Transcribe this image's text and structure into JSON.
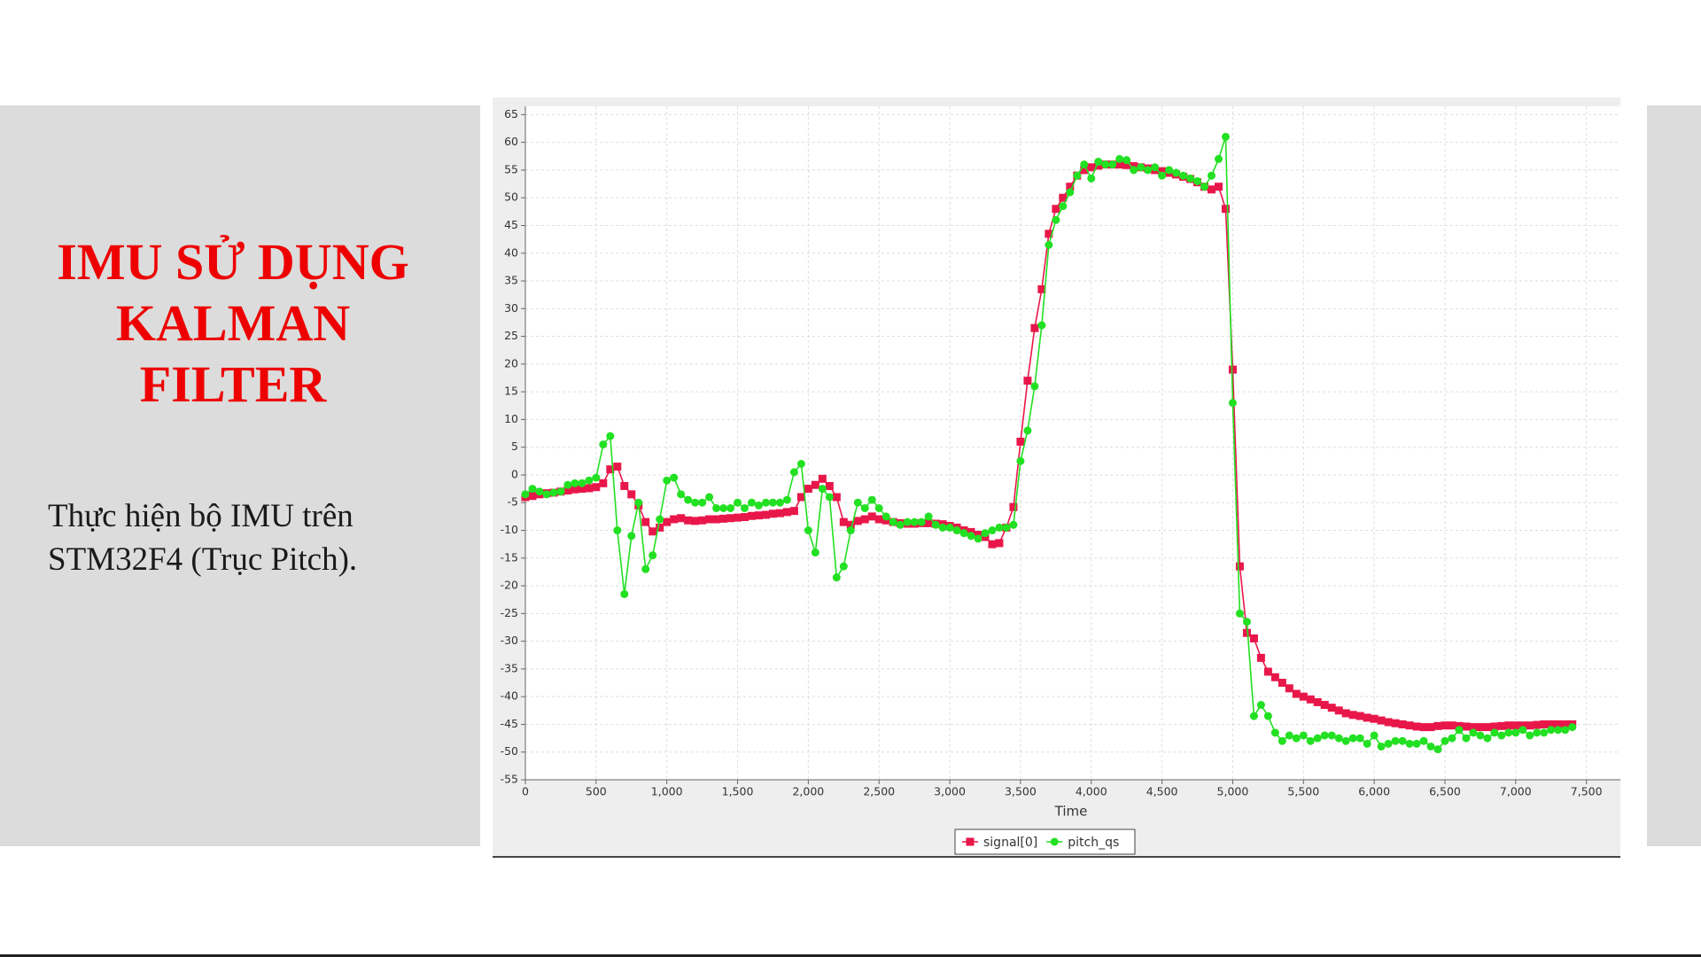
{
  "slide": {
    "title_lines": [
      "IMU SỬ DỤNG",
      "KALMAN",
      "FILTER"
    ],
    "body_lines": [
      "Thực hiện bộ IMU trên",
      "STM32F4 (Trục Pitch)."
    ]
  },
  "chart_data": {
    "type": "line",
    "x_label": "Time",
    "legend": "bottom",
    "grid": true,
    "xlim": [
      0,
      7740
    ],
    "ylim": [
      -55,
      66.5
    ],
    "xticks": [
      0,
      500,
      {
        "value": 1000,
        "label": "1,000"
      },
      {
        "value": 1500,
        "label": "1,500"
      },
      {
        "value": 2000,
        "label": "2,000"
      },
      {
        "value": 2500,
        "label": "2,500"
      },
      {
        "value": 3000,
        "label": "3,000"
      },
      {
        "value": 3500,
        "label": "3,500"
      },
      {
        "value": 4000,
        "label": "4,000"
      },
      {
        "value": 4500,
        "label": "4,500"
      },
      {
        "value": 5000,
        "label": "5,000"
      },
      {
        "value": 5500,
        "label": "5,500"
      },
      {
        "value": 6000,
        "label": "6,000"
      },
      {
        "value": 6500,
        "label": "6,500"
      },
      {
        "value": 7000,
        "label": "7,000"
      },
      {
        "value": 7500,
        "label": "7,500"
      }
    ],
    "yticks": [
      -55,
      -50,
      -45,
      -40,
      -35,
      -30,
      -25,
      -20,
      -15,
      -10,
      -5,
      0,
      5,
      10,
      15,
      20,
      25,
      30,
      35,
      40,
      45,
      50,
      55,
      60,
      65
    ],
    "x": [
      0,
      50,
      100,
      150,
      200,
      250,
      300,
      350,
      400,
      450,
      500,
      550,
      600,
      650,
      700,
      750,
      800,
      850,
      900,
      950,
      1000,
      1050,
      1100,
      1150,
      1200,
      1250,
      1300,
      1350,
      1400,
      1450,
      1500,
      1550,
      1600,
      1650,
      1700,
      1750,
      1800,
      1850,
      1900,
      1950,
      2000,
      2050,
      2100,
      2150,
      2200,
      2250,
      2300,
      2350,
      2400,
      2450,
      2500,
      2550,
      2600,
      2650,
      2700,
      2750,
      2800,
      2850,
      2900,
      2950,
      3000,
      3050,
      3100,
      3150,
      3200,
      3250,
      3300,
      3350,
      3400,
      3450,
      3500,
      3550,
      3600,
      3650,
      3700,
      3750,
      3800,
      3850,
      3900,
      3950,
      4000,
      4050,
      4100,
      4150,
      4200,
      4250,
      4300,
      4350,
      4400,
      4450,
      4500,
      4550,
      4600,
      4650,
      4700,
      4750,
      4800,
      4850,
      4900,
      4950,
      5000,
      5050,
      5100,
      5150,
      5200,
      5250,
      5300,
      5350,
      5400,
      5450,
      5500,
      5550,
      5600,
      5650,
      5700,
      5750,
      5800,
      5850,
      5900,
      5950,
      6000,
      6050,
      6100,
      6150,
      6200,
      6250,
      6300,
      6350,
      6400,
      6450,
      6500,
      6550,
      6600,
      6650,
      6700,
      6750,
      6800,
      6850,
      6900,
      6950,
      7000,
      7050,
      7100,
      7150,
      7200,
      7250,
      7300,
      7350,
      7400
    ],
    "series": [
      {
        "name": "signal[0]",
        "color": "#e8174a",
        "marker": "square",
        "values": [
          -4,
          -3.8,
          -3.5,
          -3.3,
          -3.2,
          -3,
          -2.8,
          -2.6,
          -2.5,
          -2.4,
          -2.2,
          -1.5,
          1,
          1.5,
          -2,
          -3.5,
          -5.5,
          -8.5,
          -10.2,
          -9.5,
          -8.5,
          -8,
          -7.8,
          -8.2,
          -8.3,
          -8.2,
          -8,
          -8,
          -7.9,
          -7.8,
          -7.7,
          -7.6,
          -7.4,
          -7.3,
          -7.2,
          -7,
          -6.9,
          -6.7,
          -6.5,
          -4,
          -2.5,
          -1.8,
          -0.7,
          -2,
          -4,
          -8.5,
          -9,
          -8.3,
          -8,
          -7.5,
          -8,
          -8.2,
          -8.5,
          -8.7,
          -8.8,
          -8.8,
          -8.7,
          -8.7,
          -8.8,
          -8.9,
          -9.2,
          -9.5,
          -10,
          -10.3,
          -10.8,
          -11.2,
          -12.5,
          -12.3,
          -9.5,
          -5.8,
          6,
          17,
          26.5,
          33.5,
          43.5,
          48,
          50,
          52,
          54,
          55,
          55.5,
          55.8,
          56,
          56,
          56,
          55.9,
          55.7,
          55.5,
          55.3,
          55,
          54.8,
          54.5,
          54.2,
          53.8,
          53.4,
          52.8,
          52,
          51.5,
          52,
          48,
          19,
          -16.5,
          -28.5,
          -29.5,
          -33,
          -35.5,
          -36.5,
          -37.5,
          -38.5,
          -39.5,
          -40,
          -40.5,
          -41,
          -41.5,
          -42,
          -42.5,
          -43,
          -43.3,
          -43.5,
          -43.8,
          -44,
          -44.3,
          -44.6,
          -44.8,
          -45,
          -45.2,
          -45.4,
          -45.5,
          -45.5,
          -45.3,
          -45.2,
          -45.2,
          -45.3,
          -45.4,
          -45.5,
          -45.5,
          -45.5,
          -45.4,
          -45.3,
          -45.2,
          -45.2,
          -45.2,
          -45.2,
          -45.1,
          -45,
          -45,
          -45,
          -45,
          -45
        ]
      },
      {
        "name": "pitch_qs",
        "color": "#22e022",
        "marker": "circle",
        "values": [
          -3.5,
          -2.5,
          -3,
          -3.5,
          -3.2,
          -3,
          -1.8,
          -1.5,
          -1.5,
          -1,
          -0.5,
          5.5,
          7,
          -10,
          -21.5,
          -11,
          -5,
          -17,
          -14.5,
          -8,
          -1,
          -0.5,
          -3.5,
          -4.5,
          -5,
          -5,
          -4,
          -6,
          -6,
          -6,
          -5,
          -6,
          -5,
          -5.5,
          -5,
          -5,
          -5,
          -4.5,
          0.5,
          2,
          -10,
          -14,
          -2.5,
          -4,
          -18.5,
          -16.5,
          -10,
          -5,
          -6,
          -4.5,
          -6,
          -7.5,
          -8.5,
          -9,
          -8.5,
          -8.5,
          -8.5,
          -7.5,
          -9,
          -9.5,
          -9.5,
          -10,
          -10.5,
          -11,
          -11.5,
          -10.5,
          -10,
          -9.5,
          -9.5,
          -9,
          2.5,
          8,
          16,
          27,
          41.5,
          46,
          48.5,
          51,
          54,
          56,
          53.5,
          56.5,
          56,
          56,
          57,
          56.8,
          55,
          55.5,
          55,
          55.5,
          54,
          55,
          54.5,
          54,
          53.5,
          53,
          52,
          54,
          57,
          61,
          13,
          -25,
          -26.5,
          -43.5,
          -41.5,
          -43.5,
          -46.5,
          -48,
          -47,
          -47.5,
          -47,
          -48,
          -47.5,
          -47,
          -47,
          -47.5,
          -48,
          -47.5,
          -47.5,
          -48.5,
          -47,
          -49,
          -48.5,
          -48,
          -48,
          -48.5,
          -48.5,
          -48,
          -49,
          -49.5,
          -48,
          -47.5,
          -46,
          -47.5,
          -46.5,
          -47,
          -47.5,
          -46.5,
          -47,
          -46.5,
          -46.5,
          -46,
          -47,
          -46.5,
          -46.5,
          -46,
          -46,
          -46,
          -45.5
        ]
      }
    ]
  }
}
